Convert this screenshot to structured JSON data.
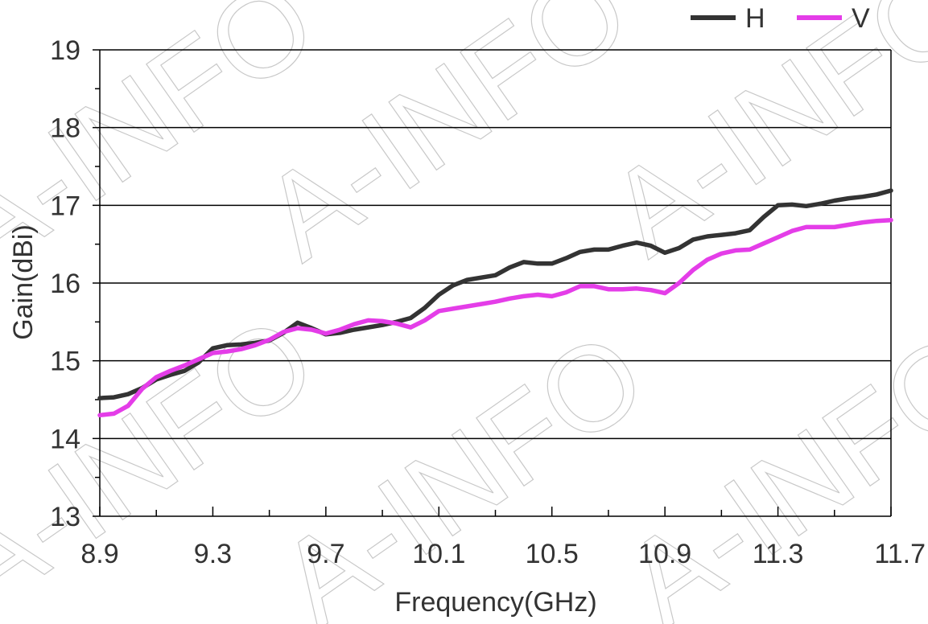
{
  "watermark": "A-INFO",
  "chart_data": {
    "type": "line",
    "xlabel": "Frequency(GHz)",
    "ylabel": "Gain(dBi)",
    "xlim": [
      8.9,
      11.7
    ],
    "ylim": [
      13,
      19
    ],
    "xticks": [
      "8.9",
      "9.3",
      "9.7",
      "10.1",
      "10.5",
      "10.9",
      "11.3",
      "11.7"
    ],
    "yticks": [
      "13",
      "14",
      "15",
      "16",
      "17",
      "18",
      "19"
    ],
    "grid": "horizontal major gridlines",
    "legend_position": "top-right",
    "series": [
      {
        "name": "H",
        "color": "#333333",
        "x": [
          8.9,
          8.95,
          9.0,
          9.05,
          9.1,
          9.15,
          9.2,
          9.25,
          9.3,
          9.35,
          9.4,
          9.45,
          9.5,
          9.55,
          9.6,
          9.65,
          9.7,
          9.75,
          9.8,
          9.85,
          9.9,
          9.95,
          10.0,
          10.05,
          10.1,
          10.15,
          10.2,
          10.25,
          10.3,
          10.35,
          10.4,
          10.45,
          10.5,
          10.55,
          10.6,
          10.65,
          10.7,
          10.75,
          10.8,
          10.85,
          10.9,
          10.95,
          11.0,
          11.05,
          11.1,
          11.15,
          11.2,
          11.25,
          11.3,
          11.35,
          11.4,
          11.45,
          11.5,
          11.55,
          11.6,
          11.65,
          11.7
        ],
        "values": [
          14.52,
          14.53,
          14.57,
          14.65,
          14.76,
          14.82,
          14.87,
          14.98,
          15.16,
          15.2,
          15.21,
          15.23,
          15.26,
          15.36,
          15.49,
          15.42,
          15.34,
          15.36,
          15.4,
          15.43,
          15.46,
          15.5,
          15.55,
          15.68,
          15.85,
          15.97,
          16.04,
          16.07,
          16.1,
          16.2,
          16.27,
          16.25,
          16.25,
          16.32,
          16.4,
          16.43,
          16.43,
          16.48,
          16.52,
          16.48,
          16.39,
          16.45,
          16.56,
          16.6,
          16.62,
          16.64,
          16.68,
          16.85,
          17.0,
          17.01,
          16.99,
          17.02,
          17.06,
          17.09,
          17.11,
          17.14,
          17.19
        ]
      },
      {
        "name": "V",
        "color": "#e43de8",
        "x": [
          8.9,
          8.95,
          9.0,
          9.05,
          9.1,
          9.15,
          9.2,
          9.25,
          9.3,
          9.35,
          9.4,
          9.45,
          9.5,
          9.55,
          9.6,
          9.65,
          9.7,
          9.75,
          9.8,
          9.85,
          9.9,
          9.95,
          10.0,
          10.05,
          10.1,
          10.15,
          10.2,
          10.25,
          10.3,
          10.35,
          10.4,
          10.45,
          10.5,
          10.55,
          10.6,
          10.65,
          10.7,
          10.75,
          10.8,
          10.85,
          10.9,
          10.95,
          11.0,
          11.05,
          11.1,
          11.15,
          11.2,
          11.25,
          11.3,
          11.35,
          11.4,
          11.45,
          11.5,
          11.55,
          11.6,
          11.65,
          11.7
        ],
        "values": [
          14.3,
          14.32,
          14.42,
          14.64,
          14.79,
          14.87,
          14.94,
          15.02,
          15.1,
          15.12,
          15.15,
          15.2,
          15.27,
          15.37,
          15.42,
          15.4,
          15.35,
          15.4,
          15.47,
          15.52,
          15.51,
          15.48,
          15.43,
          15.52,
          15.64,
          15.67,
          15.7,
          15.73,
          15.76,
          15.8,
          15.83,
          15.85,
          15.83,
          15.88,
          15.96,
          15.96,
          15.92,
          15.92,
          15.93,
          15.91,
          15.87,
          16.0,
          16.17,
          16.3,
          16.38,
          16.42,
          16.43,
          16.51,
          16.59,
          16.67,
          16.72,
          16.72,
          16.72,
          16.75,
          16.78,
          16.8,
          16.81
        ]
      }
    ]
  }
}
